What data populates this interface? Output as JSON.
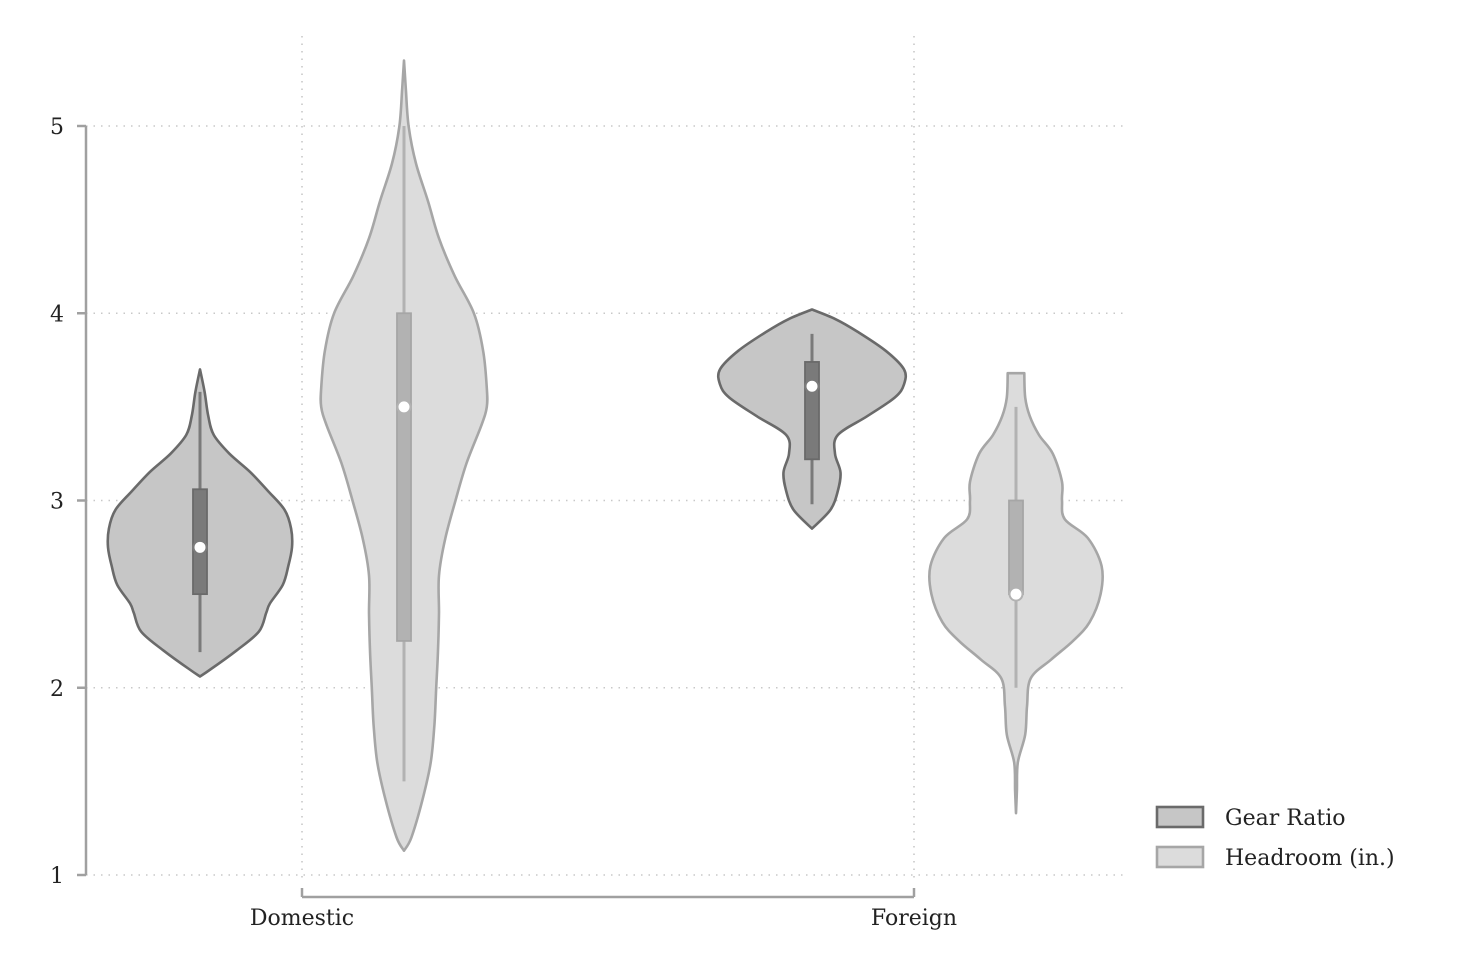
{
  "chart_data": {
    "type": "violin",
    "categories": [
      "Domestic",
      "Foreign"
    ],
    "ylim": [
      1,
      5
    ],
    "yticks": [
      1,
      2,
      3,
      4,
      5
    ],
    "grid": true,
    "legend_position": "bottom-right",
    "series": [
      {
        "name": "Gear Ratio",
        "fill": "#c6c6c6",
        "stroke": "#6a6a6a",
        "box_fill": "#7a7a7a",
        "groups": [
          {
            "category": "Domestic",
            "median": 2.75,
            "q1": 2.5,
            "q3": 3.06,
            "whisker_low": 2.19,
            "whisker_high": 3.58,
            "density": [
              [
                2.06,
                0.0
              ],
              [
                2.1,
                0.12
              ],
              [
                2.2,
                0.4
              ],
              [
                2.3,
                0.64
              ],
              [
                2.4,
                0.72
              ],
              [
                2.45,
                0.76
              ],
              [
                2.55,
                0.9
              ],
              [
                2.65,
                0.96
              ],
              [
                2.75,
                1.0
              ],
              [
                2.85,
                0.99
              ],
              [
                2.95,
                0.92
              ],
              [
                3.05,
                0.74
              ],
              [
                3.15,
                0.55
              ],
              [
                3.25,
                0.32
              ],
              [
                3.35,
                0.15
              ],
              [
                3.45,
                0.09
              ],
              [
                3.58,
                0.05
              ],
              [
                3.7,
                0.0
              ]
            ]
          },
          {
            "category": "Foreign",
            "median": 3.61,
            "q1": 3.22,
            "q3": 3.74,
            "whisker_low": 2.98,
            "whisker_high": 3.89,
            "density": [
              [
                2.85,
                0.0
              ],
              [
                2.95,
                0.2
              ],
              [
                3.05,
                0.28
              ],
              [
                3.15,
                0.31
              ],
              [
                3.25,
                0.25
              ],
              [
                3.35,
                0.28
              ],
              [
                3.45,
                0.6
              ],
              [
                3.55,
                0.9
              ],
              [
                3.62,
                1.0
              ],
              [
                3.7,
                1.0
              ],
              [
                3.8,
                0.8
              ],
              [
                3.9,
                0.5
              ],
              [
                3.97,
                0.25
              ],
              [
                4.02,
                0.0
              ]
            ]
          }
        ]
      },
      {
        "name": "Headroom (in.)",
        "fill": "#dcdcdc",
        "stroke": "#a6a6a6",
        "box_fill": "#b2b2b2",
        "groups": [
          {
            "category": "Domestic",
            "median": 3.5,
            "q1": 2.25,
            "q3": 4.0,
            "whisker_low": 1.5,
            "whisker_high": 5.0,
            "density": [
              [
                1.13,
                0.0
              ],
              [
                1.2,
                0.08
              ],
              [
                1.4,
                0.2
              ],
              [
                1.6,
                0.29
              ],
              [
                1.8,
                0.33
              ],
              [
                2.0,
                0.35
              ],
              [
                2.2,
                0.37
              ],
              [
                2.4,
                0.38
              ],
              [
                2.6,
                0.38
              ],
              [
                2.8,
                0.45
              ],
              [
                3.0,
                0.56
              ],
              [
                3.2,
                0.68
              ],
              [
                3.4,
                0.84
              ],
              [
                3.5,
                0.9
              ],
              [
                3.6,
                0.9
              ],
              [
                3.8,
                0.86
              ],
              [
                4.0,
                0.76
              ],
              [
                4.2,
                0.55
              ],
              [
                4.4,
                0.38
              ],
              [
                4.6,
                0.26
              ],
              [
                4.8,
                0.13
              ],
              [
                5.0,
                0.05
              ],
              [
                5.2,
                0.02
              ],
              [
                5.35,
                0.0
              ]
            ]
          },
          {
            "category": "Foreign",
            "median": 2.5,
            "q1": 2.5,
            "q3": 3.0,
            "whisker_low": 2.0,
            "whisker_high": 3.5,
            "density": [
              [
                1.33,
                0.0
              ],
              [
                1.45,
                0.01
              ],
              [
                1.6,
                0.02
              ],
              [
                1.75,
                0.1
              ],
              [
                1.9,
                0.12
              ],
              [
                2.05,
                0.16
              ],
              [
                2.15,
                0.38
              ],
              [
                2.25,
                0.62
              ],
              [
                2.35,
                0.8
              ],
              [
                2.5,
                0.92
              ],
              [
                2.65,
                0.93
              ],
              [
                2.8,
                0.78
              ],
              [
                2.9,
                0.53
              ],
              [
                3.0,
                0.5
              ],
              [
                3.1,
                0.5
              ],
              [
                3.25,
                0.4
              ],
              [
                3.35,
                0.25
              ],
              [
                3.45,
                0.15
              ],
              [
                3.55,
                0.1
              ],
              [
                3.68,
                0.09
              ]
            ]
          }
        ]
      }
    ]
  }
}
